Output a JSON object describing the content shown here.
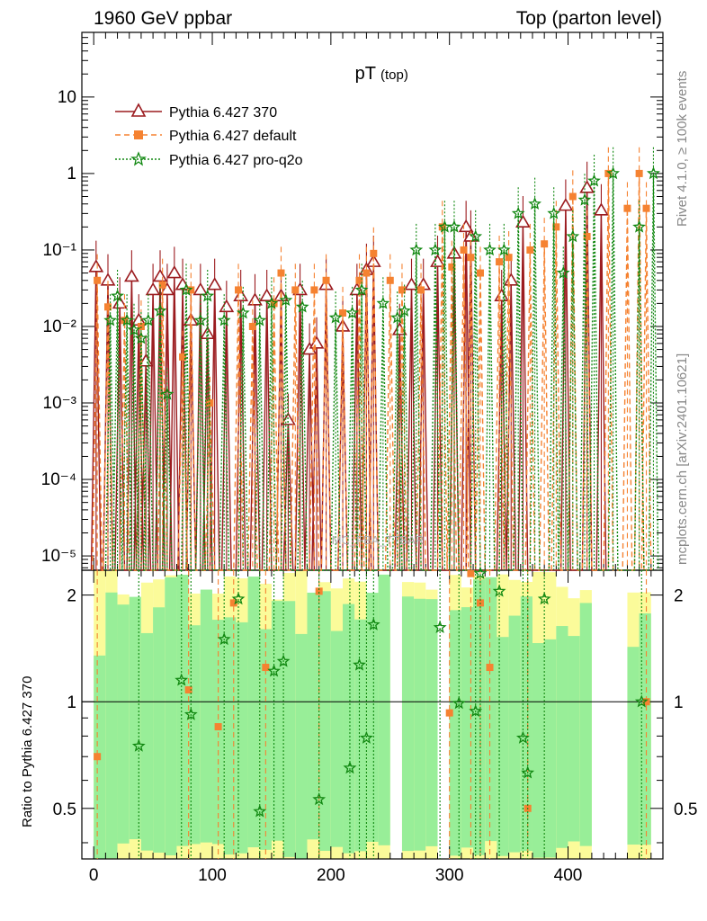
{
  "header": {
    "left": "1960 GeV ppbar",
    "right": "Top (parton level)"
  },
  "side_labels": {
    "rivet": "Rivet 4.1.0, ≥ 100k events",
    "mcplots": "mcplots.cern.ch [arXiv:2401.10621]"
  },
  "watermark": "MC_FBA_TTBAR",
  "chart_data": {
    "type": "line",
    "title": "pT",
    "title_sub": "(top)",
    "xlabel": "",
    "ylabel": "",
    "ratio_ylabel": "Ratio to Pythia 6.427 370",
    "xlim": [
      -10,
      480
    ],
    "ylim": [
      6.5e-06,
      70
    ],
    "ratio_ylim": [
      0.36,
      2.35
    ],
    "xticks": [
      "0",
      "100",
      "200",
      "300",
      "400"
    ],
    "xtick_values": [
      0,
      100,
      200,
      300,
      400
    ],
    "yticks": [
      "10",
      "1",
      "10⁻¹",
      "10⁻²",
      "10⁻³",
      "10⁻⁴",
      "10⁻⁵"
    ],
    "ytick_values": [
      10,
      1,
      0.1,
      0.01,
      0.001,
      0.0001,
      1e-05
    ],
    "ratio_yticks": [
      "0.5",
      "1",
      "2"
    ],
    "ratio_ytick_values": [
      0.5,
      1,
      2
    ],
    "legend": [
      "Pythia 6.427 370",
      "Pythia 6.427 default",
      "Pythia 6.427 pro-q2o"
    ],
    "series": [
      {
        "name": "Pythia 6.427 370",
        "color": "#9b1b1f",
        "marker": "open-triangle",
        "points": [
          [
            2,
            0.06
          ],
          [
            12,
            0.04
          ],
          [
            22,
            0.02
          ],
          [
            32,
            0.045
          ],
          [
            38,
            0.012
          ],
          [
            44,
            0.0035
          ],
          [
            50,
            0.03
          ],
          [
            56,
            0.045
          ],
          [
            62,
            0.03
          ],
          [
            68,
            0.05
          ],
          [
            75,
            0.035
          ],
          [
            82,
            0.012
          ],
          [
            90,
            0.03
          ],
          [
            96,
            0.008
          ],
          [
            102,
            0.035
          ],
          [
            112,
            0.018
          ],
          [
            124,
            0.025
          ],
          [
            136,
            0.022
          ],
          [
            146,
            0.025
          ],
          [
            158,
            0.025
          ],
          [
            164,
            0.0006
          ],
          [
            174,
            0.03
          ],
          [
            182,
            0.005
          ],
          [
            188,
            0.006
          ],
          [
            196,
            0.035
          ],
          [
            210,
            0.01
          ],
          [
            222,
            0.03
          ],
          [
            230,
            0.055
          ],
          [
            236,
            0.07
          ],
          [
            258,
            0.009
          ],
          [
            268,
            0.035
          ],
          [
            278,
            0.035
          ],
          [
            290,
            0.07
          ],
          [
            304,
            0.09
          ],
          [
            314,
            0.2
          ],
          [
            318,
            0.15
          ],
          [
            344,
            0.025
          ],
          [
            352,
            0.04
          ],
          [
            362,
            0.23
          ],
          [
            398,
            0.38
          ],
          [
            416,
            0.65
          ],
          [
            428,
            0.33
          ]
        ]
      },
      {
        "name": "Pythia 6.427 default",
        "color": "#f58231",
        "marker": "filled-square",
        "points": [
          [
            3,
            0.04
          ],
          [
            12,
            0.018
          ],
          [
            26,
            0.012
          ],
          [
            40,
            0.01
          ],
          [
            58,
            0.035
          ],
          [
            75,
            0.004
          ],
          [
            82,
            0.03
          ],
          [
            98,
            0.001
          ],
          [
            122,
            0.03
          ],
          [
            134,
            0.01
          ],
          [
            152,
            0.02
          ],
          [
            158,
            0.05
          ],
          [
            170,
            0.03
          ],
          [
            186,
            0.03
          ],
          [
            196,
            0.04
          ],
          [
            210,
            0.015
          ],
          [
            224,
            0.04
          ],
          [
            230,
            0.05
          ],
          [
            236,
            0.09
          ],
          [
            250,
            0.04
          ],
          [
            260,
            0.03
          ],
          [
            276,
            0.03
          ],
          [
            294,
            0.2
          ],
          [
            302,
            0.06
          ],
          [
            312,
            0.1
          ],
          [
            318,
            0.08
          ],
          [
            326,
            0.05
          ],
          [
            342,
            0.07
          ],
          [
            350,
            0.08
          ],
          [
            368,
            0.1
          ],
          [
            380,
            0.12
          ],
          [
            390,
            0.2
          ],
          [
            404,
            0.5
          ],
          [
            416,
            0.15
          ],
          [
            434,
            1.0
          ],
          [
            450,
            0.35
          ],
          [
            460,
            1.0
          ],
          [
            466,
            0.35
          ]
        ]
      },
      {
        "name": "Pythia 6.427 pro-q2o",
        "color": "#118811",
        "marker": "open-star",
        "points": [
          [
            14,
            0.012
          ],
          [
            20,
            0.025
          ],
          [
            28,
            0.012
          ],
          [
            34,
            0.009
          ],
          [
            40,
            0.007
          ],
          [
            46,
            0.012
          ],
          [
            56,
            0.016
          ],
          [
            62,
            0.0013
          ],
          [
            78,
            0.03
          ],
          [
            90,
            0.012
          ],
          [
            96,
            0.025
          ],
          [
            110,
            0.012
          ],
          [
            126,
            0.015
          ],
          [
            140,
            0.012
          ],
          [
            150,
            0.02
          ],
          [
            162,
            0.022
          ],
          [
            176,
            0.018
          ],
          [
            204,
            0.013
          ],
          [
            218,
            0.015
          ],
          [
            226,
            0.03
          ],
          [
            244,
            0.02
          ],
          [
            256,
            0.013
          ],
          [
            262,
            0.016
          ],
          [
            272,
            0.1
          ],
          [
            288,
            0.1
          ],
          [
            296,
            0.2
          ],
          [
            304,
            0.2
          ],
          [
            322,
            0.15
          ],
          [
            334,
            0.1
          ],
          [
            346,
            0.1
          ],
          [
            358,
            0.3
          ],
          [
            372,
            0.4
          ],
          [
            388,
            0.3
          ],
          [
            396,
            0.05
          ],
          [
            404,
            0.15
          ],
          [
            414,
            0.45
          ],
          [
            422,
            0.8
          ],
          [
            438,
            1.0
          ],
          [
            460,
            0.2
          ],
          [
            472,
            1.0
          ]
        ]
      }
    ],
    "ratio_series": [
      {
        "name": "Pythia 6.427 default",
        "color": "#f58231",
        "points": [
          [
            3,
            0.7
          ],
          [
            80,
            1.08
          ],
          [
            105,
            0.85
          ],
          [
            118,
            1.9
          ],
          [
            145,
            1.25
          ],
          [
            190,
            2.05
          ],
          [
            300,
            0.93
          ],
          [
            318,
            2.3
          ],
          [
            326,
            1.9
          ],
          [
            334,
            1.25
          ],
          [
            366,
            0.5
          ],
          [
            466,
            1.0
          ]
        ]
      },
      {
        "name": "Pythia 6.427 pro-q2o",
        "color": "#118811",
        "points": [
          [
            38,
            0.75
          ],
          [
            74,
            1.15
          ],
          [
            82,
            0.92
          ],
          [
            110,
            1.5
          ],
          [
            122,
            1.95
          ],
          [
            140,
            0.49
          ],
          [
            152,
            1.22
          ],
          [
            160,
            1.3
          ],
          [
            190,
            0.53
          ],
          [
            216,
            0.65
          ],
          [
            224,
            1.27
          ],
          [
            230,
            0.79
          ],
          [
            236,
            1.65
          ],
          [
            292,
            1.62
          ],
          [
            308,
            0.99
          ],
          [
            322,
            0.94
          ],
          [
            326,
            2.3
          ],
          [
            342,
            2.05
          ],
          [
            362,
            0.79
          ],
          [
            366,
            0.63
          ],
          [
            380,
            1.95
          ],
          [
            462,
            1.0
          ]
        ]
      }
    ]
  }
}
